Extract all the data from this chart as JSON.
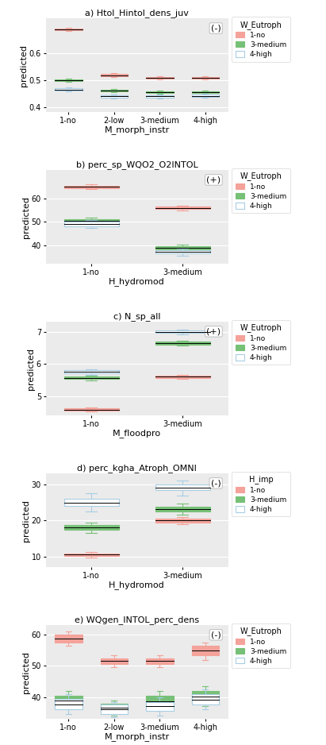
{
  "panel_a": {
    "title": "a) Htol_Hintol_dens_juv",
    "xlabel": "M_morph_instr",
    "ylabel": "predicted",
    "sign": "(-)",
    "legend_title": "W_Eutroph",
    "xlim": [
      0.5,
      4.5
    ],
    "ylim": [
      0.38,
      0.73
    ],
    "yticks": [
      0.4,
      0.5,
      0.6
    ],
    "xtick_labels": [
      "1-no",
      "2-low",
      "3-medium",
      "4-high"
    ],
    "xtick_pos": [
      1,
      2,
      3,
      4
    ],
    "boxes": [
      {
        "x": 1.0,
        "color": "salmon",
        "q1": 0.687,
        "q3": 0.694,
        "med": 0.69,
        "whislo": 0.685,
        "whishi": 0.696
      },
      {
        "x": 1.0,
        "color": "green",
        "q1": 0.497,
        "q3": 0.503,
        "med": 0.5,
        "whislo": 0.494,
        "whishi": 0.506
      },
      {
        "x": 1.0,
        "color": "lightblue",
        "q1": 0.461,
        "q3": 0.469,
        "med": 0.465,
        "whislo": 0.458,
        "whishi": 0.473
      },
      {
        "x": 2.0,
        "color": "salmon",
        "q1": 0.515,
        "q3": 0.523,
        "med": 0.519,
        "whislo": 0.512,
        "whishi": 0.526
      },
      {
        "x": 2.0,
        "color": "green",
        "q1": 0.458,
        "q3": 0.465,
        "med": 0.462,
        "whislo": 0.454,
        "whishi": 0.467
      },
      {
        "x": 2.0,
        "color": "lightblue",
        "q1": 0.434,
        "q3": 0.443,
        "med": 0.439,
        "whislo": 0.43,
        "whishi": 0.446
      },
      {
        "x": 3.0,
        "color": "salmon",
        "q1": 0.506,
        "q3": 0.513,
        "med": 0.51,
        "whislo": 0.503,
        "whishi": 0.516
      },
      {
        "x": 3.0,
        "color": "green",
        "q1": 0.451,
        "q3": 0.459,
        "med": 0.455,
        "whislo": 0.448,
        "whishi": 0.461
      },
      {
        "x": 3.0,
        "color": "lightblue",
        "q1": 0.434,
        "q3": 0.443,
        "med": 0.439,
        "whislo": 0.431,
        "whishi": 0.446
      },
      {
        "x": 4.0,
        "color": "salmon",
        "q1": 0.506,
        "q3": 0.513,
        "med": 0.51,
        "whislo": 0.503,
        "whishi": 0.516
      },
      {
        "x": 4.0,
        "color": "green",
        "q1": 0.451,
        "q3": 0.459,
        "med": 0.455,
        "whislo": 0.448,
        "whishi": 0.461
      },
      {
        "x": 4.0,
        "color": "lightblue",
        "q1": 0.436,
        "q3": 0.446,
        "med": 0.441,
        "whislo": 0.433,
        "whishi": 0.449
      }
    ]
  },
  "panel_b": {
    "title": "b) perc_sp_WQO2_O2INTOL",
    "xlabel": "H_hydromod",
    "ylabel": "predicted",
    "sign": "(+)",
    "legend_title": "W_Eutroph",
    "xlim": [
      0.5,
      2.5
    ],
    "ylim": [
      32,
      72
    ],
    "yticks": [
      40,
      50,
      60
    ],
    "xtick_labels": [
      "1-no",
      "3-medium"
    ],
    "xtick_pos": [
      1,
      2
    ],
    "boxes": [
      {
        "x": 1.0,
        "color": "salmon",
        "q1": 64.5,
        "q3": 65.5,
        "med": 65.0,
        "whislo": 64.0,
        "whishi": 66.0
      },
      {
        "x": 1.0,
        "color": "green",
        "q1": 49.5,
        "q3": 51.2,
        "med": 50.3,
        "whislo": 48.8,
        "whishi": 51.8
      },
      {
        "x": 1.0,
        "color": "lightblue",
        "q1": 48.0,
        "q3": 50.2,
        "med": 49.1,
        "whislo": 47.5,
        "whishi": 50.8
      },
      {
        "x": 2.0,
        "color": "salmon",
        "q1": 55.5,
        "q3": 56.5,
        "med": 56.0,
        "whislo": 55.0,
        "whishi": 57.0
      },
      {
        "x": 2.0,
        "color": "green",
        "q1": 38.0,
        "q3": 39.5,
        "med": 38.8,
        "whislo": 37.3,
        "whishi": 40.2
      },
      {
        "x": 2.0,
        "color": "lightblue",
        "q1": 36.5,
        "q3": 37.8,
        "med": 37.1,
        "whislo": 35.5,
        "whishi": 38.5
      }
    ]
  },
  "panel_c": {
    "title": "c) N_sp_all",
    "xlabel": "M_floodpro",
    "ylabel": "predicted",
    "sign": "(+)",
    "legend_title": "W_Eutroph",
    "xlim": [
      0.5,
      2.5
    ],
    "ylim": [
      4.4,
      7.3
    ],
    "yticks": [
      5,
      6,
      7
    ],
    "xtick_labels": [
      "1-no",
      "3-medium"
    ],
    "xtick_pos": [
      1,
      2
    ],
    "boxes": [
      {
        "x": 1.0,
        "color": "salmon",
        "q1": 4.55,
        "q3": 4.63,
        "med": 4.59,
        "whislo": 4.52,
        "whishi": 4.66
      },
      {
        "x": 1.0,
        "color": "green",
        "q1": 5.53,
        "q3": 5.61,
        "med": 5.57,
        "whislo": 5.49,
        "whishi": 5.64
      },
      {
        "x": 1.0,
        "color": "lightblue",
        "q1": 5.7,
        "q3": 5.8,
        "med": 5.75,
        "whislo": 5.67,
        "whishi": 5.84
      },
      {
        "x": 2.0,
        "color": "salmon",
        "q1": 5.56,
        "q3": 5.63,
        "med": 5.6,
        "whislo": 5.53,
        "whishi": 5.67
      },
      {
        "x": 2.0,
        "color": "green",
        "q1": 6.6,
        "q3": 6.7,
        "med": 6.65,
        "whislo": 6.56,
        "whishi": 6.73
      },
      {
        "x": 2.0,
        "color": "lightblue",
        "q1": 6.96,
        "q3": 7.04,
        "med": 7.0,
        "whislo": 6.92,
        "whishi": 7.07
      }
    ]
  },
  "panel_d": {
    "title": "d) perc_kgha_Atroph_OMNI",
    "xlabel": "H_hydromod",
    "ylabel": "predicted",
    "sign": "(-)",
    "legend_title": "H_imp",
    "xlim": [
      0.5,
      2.5
    ],
    "ylim": [
      7,
      33
    ],
    "yticks": [
      10,
      20,
      30
    ],
    "xtick_labels": [
      "1-no",
      "3-medium"
    ],
    "xtick_pos": [
      1,
      2
    ],
    "boxes": [
      {
        "x": 1.0,
        "color": "salmon",
        "q1": 10.2,
        "q3": 10.8,
        "med": 10.5,
        "whislo": 9.8,
        "whishi": 11.2
      },
      {
        "x": 1.0,
        "color": "green",
        "q1": 17.5,
        "q3": 18.7,
        "med": 18.1,
        "whislo": 16.5,
        "whishi": 19.5
      },
      {
        "x": 1.0,
        "color": "lightblue",
        "q1": 24.0,
        "q3": 26.0,
        "med": 25.0,
        "whislo": 22.5,
        "whishi": 27.5
      },
      {
        "x": 2.0,
        "color": "salmon",
        "q1": 19.5,
        "q3": 20.5,
        "med": 20.0,
        "whislo": 19.0,
        "whishi": 21.0
      },
      {
        "x": 2.0,
        "color": "green",
        "q1": 22.5,
        "q3": 23.8,
        "med": 23.1,
        "whislo": 21.5,
        "whishi": 24.8
      },
      {
        "x": 2.0,
        "color": "lightblue",
        "q1": 28.5,
        "q3": 30.0,
        "med": 29.2,
        "whislo": 27.0,
        "whishi": 31.0
      }
    ]
  },
  "panel_e": {
    "title": "e) WQgen_INTOL_perc_dens",
    "xlabel": "M_morph_instr",
    "ylabel": "predicted",
    "sign": "(-)",
    "legend_title": "W_Eutroph",
    "xlim": [
      0.5,
      4.5
    ],
    "ylim": [
      33,
      63
    ],
    "yticks": [
      40,
      50,
      60
    ],
    "xtick_labels": [
      "1-no",
      "2-low",
      "3-medium",
      "4-high"
    ],
    "xtick_pos": [
      1,
      2,
      3,
      4
    ],
    "boxes": [
      {
        "x": 1.0,
        "color": "salmon",
        "q1": 57.5,
        "q3": 60.0,
        "med": 58.7,
        "whislo": 56.5,
        "whishi": 61.0
      },
      {
        "x": 1.0,
        "color": "green",
        "q1": 37.5,
        "q3": 40.5,
        "med": 39.0,
        "whislo": 36.0,
        "whishi": 42.0
      },
      {
        "x": 1.0,
        "color": "lightblue",
        "q1": 36.0,
        "q3": 39.5,
        "med": 37.7,
        "whislo": 34.5,
        "whishi": 41.0
      },
      {
        "x": 2.0,
        "color": "salmon",
        "q1": 50.5,
        "q3": 52.5,
        "med": 51.5,
        "whislo": 49.5,
        "whishi": 53.5
      },
      {
        "x": 2.0,
        "color": "green",
        "q1": 35.5,
        "q3": 38.0,
        "med": 36.7,
        "whislo": 34.0,
        "whishi": 39.0
      },
      {
        "x": 2.0,
        "color": "lightblue",
        "q1": 34.5,
        "q3": 37.5,
        "med": 36.0,
        "whislo": 33.5,
        "whishi": 38.5
      },
      {
        "x": 3.0,
        "color": "salmon",
        "q1": 50.5,
        "q3": 52.5,
        "med": 51.5,
        "whislo": 49.5,
        "whishi": 53.5
      },
      {
        "x": 3.0,
        "color": "green",
        "q1": 37.0,
        "q3": 40.5,
        "med": 38.7,
        "whislo": 35.5,
        "whishi": 42.0
      },
      {
        "x": 3.0,
        "color": "lightblue",
        "q1": 35.5,
        "q3": 38.5,
        "med": 37.0,
        "whislo": 34.0,
        "whishi": 40.0
      },
      {
        "x": 4.0,
        "color": "salmon",
        "q1": 53.5,
        "q3": 56.5,
        "med": 55.0,
        "whislo": 52.0,
        "whishi": 57.5
      },
      {
        "x": 4.0,
        "color": "green",
        "q1": 38.5,
        "q3": 42.0,
        "med": 40.2,
        "whislo": 37.0,
        "whishi": 43.5
      },
      {
        "x": 4.0,
        "color": "lightblue",
        "q1": 37.5,
        "q3": 41.0,
        "med": 39.2,
        "whislo": 36.0,
        "whishi": 42.5
      }
    ]
  },
  "colors": {
    "salmon": "#F4A29A",
    "green": "#77C077",
    "lightblue": "#A8CEE4",
    "bg": "#EBEBEB"
  }
}
